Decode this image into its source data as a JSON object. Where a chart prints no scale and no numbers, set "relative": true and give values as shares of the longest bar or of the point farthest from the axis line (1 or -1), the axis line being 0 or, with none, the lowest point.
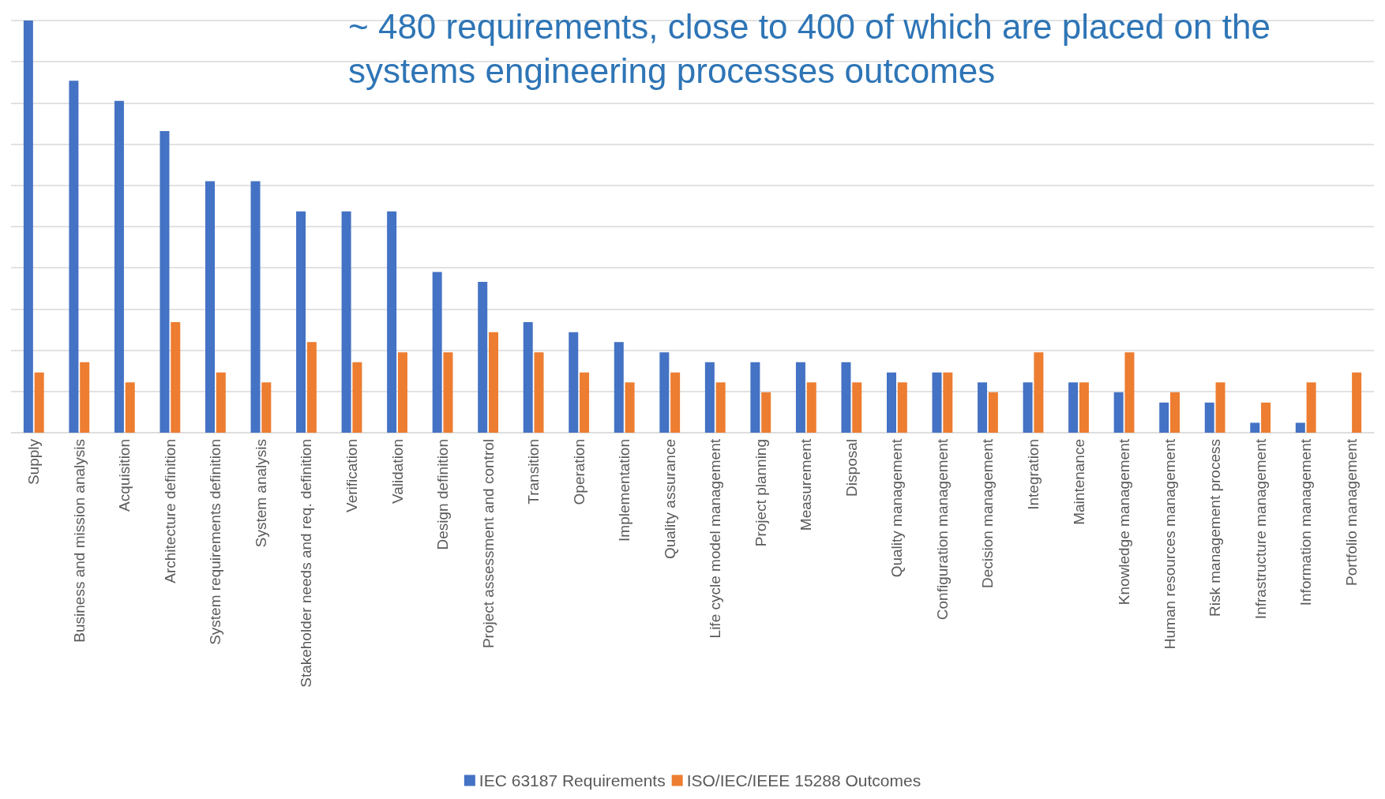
{
  "chart_data": {
    "type": "bar",
    "relative": true,
    "title": "~ 480 requirements, close to 400 of which are placed on the systems engineering processes outcomes",
    "categories": [
      "Supply",
      "Business and mission analysis",
      "Acquisition",
      "Architecture definition",
      "System requirements definition",
      "System analysis",
      "Stakeholder needs and req. definition",
      "Verification",
      "Validation",
      "Design definition",
      "Project assessment and control",
      "Transition",
      "Operation",
      "Implementation",
      "Quality assurance",
      "Life cycle model management",
      "Project planning",
      "Measurement",
      "Disposal",
      "Quality management",
      "Configuration management",
      "Decision management",
      "Integration",
      "Maintenance",
      "Knowledge management",
      "Human resources management",
      "Risk management process",
      "Infrastructure management",
      "Information management",
      "Portfolio management"
    ],
    "series": [
      {
        "name": "IEC 63187 Requirements",
        "color": "#4472c4",
        "values": [
          1,
          0.854,
          0.805,
          0.732,
          0.61,
          0.61,
          0.537,
          0.537,
          0.537,
          0.39,
          0.366,
          0.268,
          0.244,
          0.22,
          0.195,
          0.171,
          0.171,
          0.171,
          0.171,
          0.146,
          0.146,
          0.122,
          0.122,
          0.122,
          0.098,
          0.073,
          0.073,
          0.024,
          0.024,
          0
        ]
      },
      {
        "name": "ISO/IEC/IEEE 15288 Outcomes",
        "color": "#ed7d31",
        "values": [
          0.146,
          0.171,
          0.122,
          0.268,
          0.146,
          0.122,
          0.22,
          0.171,
          0.195,
          0.195,
          0.244,
          0.195,
          0.146,
          0.122,
          0.146,
          0.122,
          0.098,
          0.122,
          0.122,
          0.122,
          0.146,
          0.098,
          0.195,
          0.122,
          0.195,
          0.098,
          0.122,
          0.073,
          0.122,
          0.146
        ]
      }
    ],
    "grid": "y",
    "legend": "bottom"
  }
}
